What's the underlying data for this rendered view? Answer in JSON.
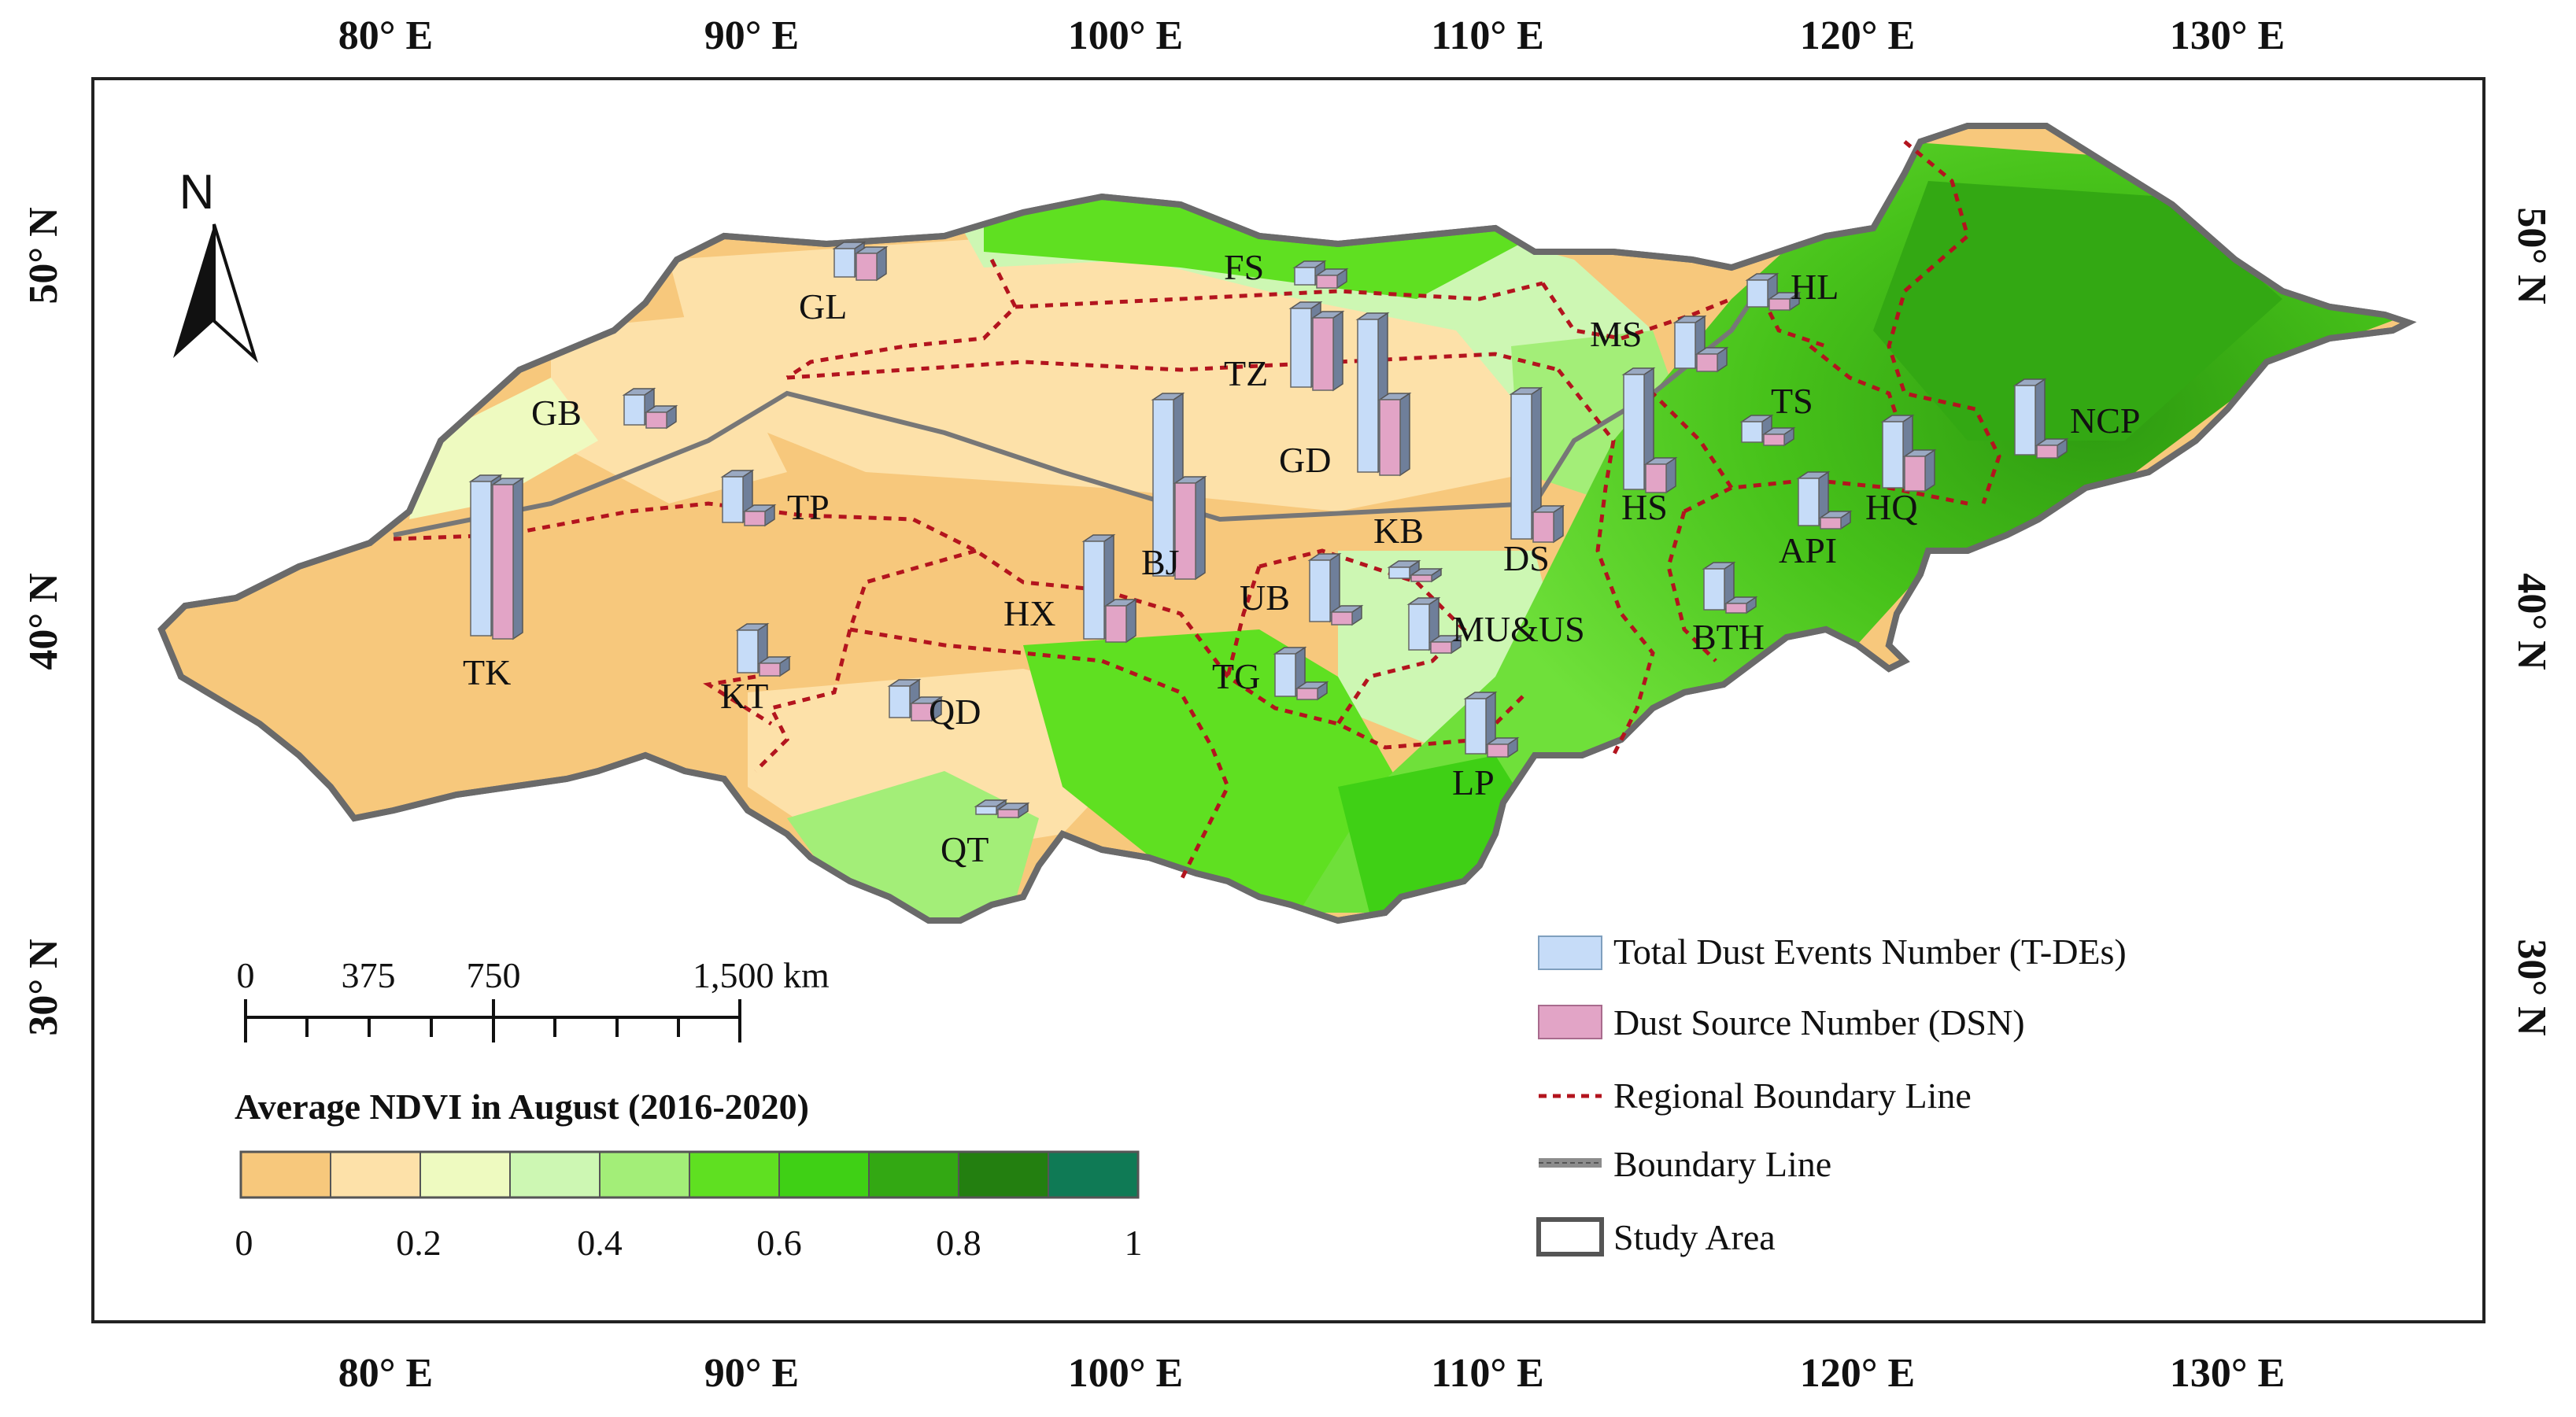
{
  "graticule": {
    "lon_labels": [
      "80° E",
      "90° E",
      "100° E",
      "110° E",
      "120° E",
      "130° E"
    ],
    "lat_labels": [
      "50° N",
      "40° N",
      "30° N"
    ]
  },
  "north_arrow": {
    "label": "N",
    "icon": "north-arrow-icon"
  },
  "scale_bar": {
    "labels": [
      "0",
      "375",
      "750",
      "1,500 km"
    ]
  },
  "ndvi_legend": {
    "title": "Average NDVI in August (2016-2020)",
    "colors": [
      "#f7c87c",
      "#fde1a9",
      "#eefac0",
      "#cdf7b3",
      "#a3ee78",
      "#5fe021",
      "#3fd015",
      "#33a813",
      "#237f10",
      "#0f7a55"
    ],
    "ticks": [
      "0",
      "0.2",
      "0.4",
      "0.6",
      "0.8",
      "1"
    ]
  },
  "legend": {
    "items": [
      {
        "label": "Total Dust Events Number (T-DEs)",
        "color": "#c6dcf8",
        "icon": "blue-bar-swatch"
      },
      {
        "label": "Dust Source Number (DSN)",
        "color": "#e2a4c6",
        "icon": "pink-bar-swatch"
      },
      {
        "label": "Regional Boundary Line",
        "color": "#b3141e",
        "icon": "dashed-red-line-swatch"
      },
      {
        "label": "Boundary Line",
        "color": "#8c8c8c",
        "icon": "gray-line-swatch"
      },
      {
        "label": "Study Area",
        "color": "#555555",
        "icon": "outlined-box-swatch"
      }
    ]
  },
  "regions": [
    {
      "name": "GL"
    },
    {
      "name": "FS"
    },
    {
      "name": "HL"
    },
    {
      "name": "GB"
    },
    {
      "name": "TZ"
    },
    {
      "name": "MS"
    },
    {
      "name": "GD"
    },
    {
      "name": "TS"
    },
    {
      "name": "NCP"
    },
    {
      "name": "TP"
    },
    {
      "name": "HS"
    },
    {
      "name": "HQ"
    },
    {
      "name": "KB"
    },
    {
      "name": "BJ"
    },
    {
      "name": "DS"
    },
    {
      "name": "API"
    },
    {
      "name": "UB"
    },
    {
      "name": "HX"
    },
    {
      "name": "MU&US"
    },
    {
      "name": "BTH"
    },
    {
      "name": "TK"
    },
    {
      "name": "KT"
    },
    {
      "name": "TG"
    },
    {
      "name": "QD"
    },
    {
      "name": "LP"
    },
    {
      "name": "QT"
    }
  ],
  "colors": {
    "desert": "#f7c87c",
    "regional_boundary": "#b3141e",
    "study_area_outline": "#666666",
    "tde_bar": "#c6dcf8",
    "dsn_bar": "#e2a4c6"
  }
}
